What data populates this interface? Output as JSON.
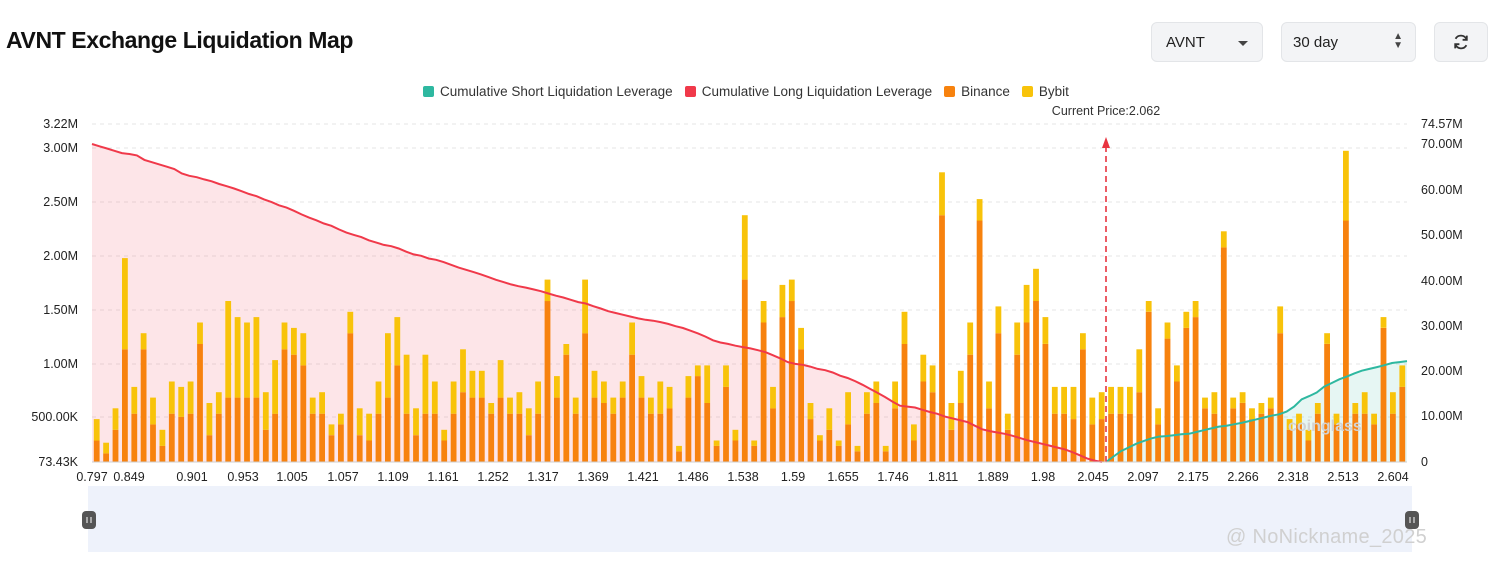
{
  "header": {
    "title": "AVNT Exchange Liquidation Map",
    "coin_select": "AVNT",
    "range_select": "30 day",
    "refresh_icon": "refresh-icon"
  },
  "legend": [
    {
      "label": "Cumulative Short Liquidation Leverage",
      "color": "#2eb8a0"
    },
    {
      "label": "Cumulative Long Liquidation Leverage",
      "color": "#f0394a"
    },
    {
      "label": "Binance",
      "color": "#f7820e"
    },
    {
      "label": "Bybit",
      "color": "#f8c30a"
    }
  ],
  "watermark": "@ NoNickname_2025",
  "watermark_logo": "coinglass",
  "chart_data": {
    "type": "bar",
    "current_price_label": "Current Price:2.062",
    "current_price": 2.062,
    "left_axis": {
      "ticks": [
        "3.22M",
        "3.00M",
        "2.50M",
        "2.00M",
        "1.50M",
        "1.00M",
        "500.00K",
        "73.43K"
      ],
      "values": [
        3220000,
        3000000,
        2500000,
        2000000,
        1500000,
        1000000,
        500000,
        73430
      ]
    },
    "right_axis": {
      "ticks": [
        "74.57M",
        "70.00M",
        "60.00M",
        "50.00M",
        "40.00M",
        "30.00M",
        "20.00M",
        "10.00M",
        "0"
      ],
      "values": [
        74570000,
        70000000,
        60000000,
        50000000,
        40000000,
        30000000,
        20000000,
        10000000,
        0
      ]
    },
    "x_ticks": [
      "0.797",
      "0.849",
      "0.901",
      "0.953",
      "1.005",
      "1.057",
      "1.109",
      "1.161",
      "1.252",
      "1.317",
      "1.369",
      "1.421",
      "1.486",
      "1.538",
      "1.59",
      "1.655",
      "1.746",
      "1.811",
      "1.889",
      "1.98",
      "2.045",
      "2.097",
      "2.175",
      "2.266",
      "2.318",
      "2.513",
      "2.604"
    ],
    "bars": {
      "binance": [
        0.2,
        0.08,
        0.3,
        1.05,
        0.45,
        1.05,
        0.35,
        0.15,
        0.45,
        0.42,
        0.45,
        1.1,
        0.25,
        0.45,
        0.6,
        0.6,
        0.6,
        0.6,
        0.3,
        0.45,
        1.05,
        1.0,
        0.9,
        0.45,
        0.45,
        0.25,
        0.35,
        1.2,
        0.25,
        0.2,
        0.45,
        0.6,
        0.9,
        0.45,
        0.25,
        0.45,
        0.45,
        0.2,
        0.45,
        0.65,
        0.6,
        0.6,
        0.45,
        0.6,
        0.45,
        0.45,
        0.25,
        0.45,
        1.5,
        0.6,
        1.0,
        0.45,
        1.2,
        0.6,
        0.55,
        0.45,
        0.6,
        1.0,
        0.6,
        0.45,
        0.45,
        0.5,
        0.1,
        0.6,
        0.8,
        0.55,
        0.15,
        0.7,
        0.2,
        1.7,
        0.15,
        1.3,
        0.5,
        1.35,
        1.5,
        1.05,
        0.4,
        0.2,
        0.3,
        0.15,
        0.35,
        0.1,
        0.45,
        0.55,
        0.1,
        0.5,
        1.1,
        0.2,
        0.75,
        0.65,
        2.3,
        0.3,
        0.55,
        1.0,
        2.25,
        0.5,
        1.2,
        0.3,
        1.0,
        1.3,
        1.5,
        1.1,
        0.45,
        0.45,
        0.4,
        1.05,
        0.35,
        0.4,
        0.45,
        0.45,
        0.45,
        0.65,
        1.4,
        0.35,
        1.15,
        0.75,
        1.25,
        1.35,
        0.5,
        0.45,
        2.0,
        0.5,
        0.55,
        0.4,
        0.45,
        0.5,
        1.2,
        0.3,
        0.35,
        0.2,
        0.45,
        1.1,
        0.35,
        2.25,
        0.45,
        0.45,
        0.35,
        1.25,
        0.45,
        0.7
      ],
      "bybit": [
        0.2,
        0.1,
        0.2,
        0.85,
        0.25,
        0.15,
        0.25,
        0.15,
        0.3,
        0.28,
        0.3,
        0.2,
        0.3,
        0.2,
        0.9,
        0.75,
        0.7,
        0.75,
        0.35,
        0.5,
        0.25,
        0.25,
        0.3,
        0.15,
        0.2,
        0.1,
        0.1,
        0.2,
        0.25,
        0.25,
        0.3,
        0.6,
        0.45,
        0.55,
        0.25,
        0.55,
        0.3,
        0.1,
        0.3,
        0.4,
        0.25,
        0.25,
        0.1,
        0.35,
        0.15,
        0.2,
        0.25,
        0.3,
        0.2,
        0.2,
        0.1,
        0.15,
        0.5,
        0.25,
        0.2,
        0.15,
        0.15,
        0.3,
        0.2,
        0.15,
        0.3,
        0.2,
        0.05,
        0.2,
        0.1,
        0.35,
        0.05,
        0.2,
        0.1,
        0.6,
        0.05,
        0.2,
        0.2,
        0.3,
        0.2,
        0.2,
        0.15,
        0.05,
        0.2,
        0.05,
        0.3,
        0.05,
        0.2,
        0.2,
        0.05,
        0.25,
        0.3,
        0.15,
        0.25,
        0.25,
        0.4,
        0.25,
        0.3,
        0.3,
        0.2,
        0.25,
        0.25,
        0.15,
        0.3,
        0.35,
        0.3,
        0.25,
        0.25,
        0.25,
        0.3,
        0.15,
        0.25,
        0.25,
        0.25,
        0.25,
        0.25,
        0.4,
        0.1,
        0.15,
        0.15,
        0.15,
        0.15,
        0.15,
        0.1,
        0.2,
        0.15,
        0.1,
        0.1,
        0.1,
        0.1,
        0.1,
        0.25,
        0.1,
        0.1,
        0.1,
        0.1,
        0.1,
        0.1,
        0.65,
        0.1,
        0.2,
        0.1,
        0.1,
        0.2,
        0.2
      ]
    },
    "long_cumulative": [
      70,
      69.5,
      69,
      68.5,
      68,
      67.8,
      67.5,
      66.5,
      66,
      65.5,
      65,
      64.5,
      63.5,
      63,
      62.7,
      62.2,
      61.8,
      61.2,
      60.7,
      60.2,
      59.6,
      59,
      58.5,
      57.8,
      57.2,
      56.5,
      56,
      55.3,
      54.5,
      53.8,
      53.2,
      52.5,
      52,
      51.2,
      50.5,
      50,
      49.5,
      48.8,
      48.3,
      47.8,
      47.5,
      47,
      46.3,
      45.7,
      45.4,
      44.8,
      44.5,
      44,
      43.4,
      42.8,
      42.3,
      41.8,
      41.3,
      40.7,
      40.1,
      39.6,
      39.1,
      38.7,
      38.4,
      38,
      37.6,
      37.1,
      36.6,
      36.2,
      35.7,
      35.2,
      34.9,
      34.3,
      33.8,
      33.2,
      32.8,
      32.4,
      32,
      31.6,
      31.3,
      31.1,
      30.8,
      30.4,
      29.9,
      29.5,
      28.9,
      28.3,
      27.6,
      26.8,
      26.3,
      26,
      25.6,
      25.3,
      25,
      24.6,
      24.2,
      23.5,
      22.8,
      22,
      21.6,
      21.4,
      21,
      20.5,
      20.2,
      19.7,
      19,
      18.5,
      17.8,
      17,
      16.1,
      15.2,
      14.3,
      13.3,
      12.4,
      12.2,
      12,
      11.5,
      11,
      10.6,
      10,
      9.6,
      9.2,
      8.8,
      8,
      7.2,
      6.8,
      6.5,
      6.2,
      5.8,
      5.3,
      4.8,
      4.4,
      4,
      3.6,
      3.2,
      2.8,
      2.2,
      1.5,
      0.8,
      0.3,
      0
    ],
    "short_cumulative": [
      0,
      1.2,
      2.4,
      3.2,
      4.0,
      4.6,
      5.2,
      5.6,
      5.7,
      5.9,
      6.1,
      6.2,
      6.6,
      7.0,
      7.4,
      7.8,
      8.0,
      8.3,
      8.6,
      9.0,
      9.4,
      9.8,
      10.2,
      10.5,
      11.1,
      12.2,
      13.8,
      14.5,
      15.3,
      16.6,
      17.4,
      18.2,
      18.8,
      19.5,
      20.1,
      20.5,
      20.9,
      21.3,
      21.8,
      22.0,
      22.2
    ]
  }
}
